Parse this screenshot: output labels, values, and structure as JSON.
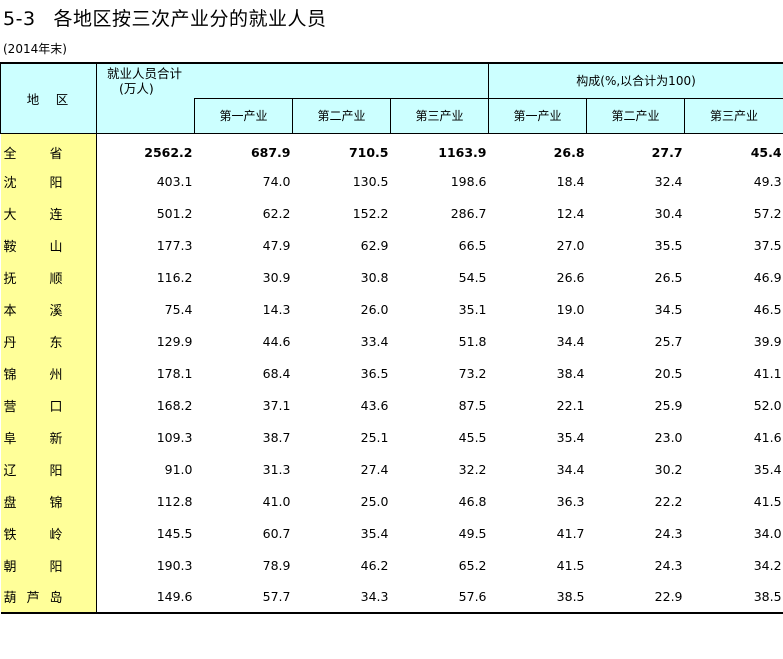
{
  "title": {
    "num": "5-3",
    "text": "各地区按三次产业分的就业人员"
  },
  "subtitle": "(2014年末)",
  "header": {
    "region": "地　区",
    "total": "就业人员合计",
    "total_unit": "(万人)",
    "composition": "构成(%,以合计为100)",
    "sub": [
      "第一产业",
      "第二产业",
      "第三产业",
      "第一产业",
      "第二产业",
      "第三产业"
    ]
  },
  "rows": [
    {
      "r1": "全",
      "r2": "省",
      "r3": "",
      "total": "2562.2",
      "p1": "687.9",
      "p2": "710.5",
      "p3": "1163.9",
      "c1": "26.8",
      "c2": "27.7",
      "c3": "45.4"
    },
    {
      "r1": "沈",
      "r2": "阳",
      "r3": "",
      "total": "403.1",
      "p1": "74.0",
      "p2": "130.5",
      "p3": "198.6",
      "c1": "18.4",
      "c2": "32.4",
      "c3": "49.3"
    },
    {
      "r1": "大",
      "r2": "连",
      "r3": "",
      "total": "501.2",
      "p1": "62.2",
      "p2": "152.2",
      "p3": "286.7",
      "c1": "12.4",
      "c2": "30.4",
      "c3": "57.2"
    },
    {
      "r1": "鞍",
      "r2": "山",
      "r3": "",
      "total": "177.3",
      "p1": "47.9",
      "p2": "62.9",
      "p3": "66.5",
      "c1": "27.0",
      "c2": "35.5",
      "c3": "37.5"
    },
    {
      "r1": "抚",
      "r2": "顺",
      "r3": "",
      "total": "116.2",
      "p1": "30.9",
      "p2": "30.8",
      "p3": "54.5",
      "c1": "26.6",
      "c2": "26.5",
      "c3": "46.9"
    },
    {
      "r1": "本",
      "r2": "溪",
      "r3": "",
      "total": "75.4",
      "p1": "14.3",
      "p2": "26.0",
      "p3": "35.1",
      "c1": "19.0",
      "c2": "34.5",
      "c3": "46.5"
    },
    {
      "r1": "丹",
      "r2": "东",
      "r3": "",
      "total": "129.9",
      "p1": "44.6",
      "p2": "33.4",
      "p3": "51.8",
      "c1": "34.4",
      "c2": "25.7",
      "c3": "39.9"
    },
    {
      "r1": "锦",
      "r2": "州",
      "r3": "",
      "total": "178.1",
      "p1": "68.4",
      "p2": "36.5",
      "p3": "73.2",
      "c1": "38.4",
      "c2": "20.5",
      "c3": "41.1"
    },
    {
      "r1": "营",
      "r2": "口",
      "r3": "",
      "total": "168.2",
      "p1": "37.1",
      "p2": "43.6",
      "p3": "87.5",
      "c1": "22.1",
      "c2": "25.9",
      "c3": "52.0"
    },
    {
      "r1": "阜",
      "r2": "新",
      "r3": "",
      "total": "109.3",
      "p1": "38.7",
      "p2": "25.1",
      "p3": "45.5",
      "c1": "35.4",
      "c2": "23.0",
      "c3": "41.6"
    },
    {
      "r1": "辽",
      "r2": "阳",
      "r3": "",
      "total": "91.0",
      "p1": "31.3",
      "p2": "27.4",
      "p3": "32.2",
      "c1": "34.4",
      "c2": "30.2",
      "c3": "35.4"
    },
    {
      "r1": "盘",
      "r2": "锦",
      "r3": "",
      "total": "112.8",
      "p1": "41.0",
      "p2": "25.0",
      "p3": "46.8",
      "c1": "36.3",
      "c2": "22.2",
      "c3": "41.5"
    },
    {
      "r1": "铁",
      "r2": "岭",
      "r3": "",
      "total": "145.5",
      "p1": "60.7",
      "p2": "35.4",
      "p3": "49.5",
      "c1": "41.7",
      "c2": "24.3",
      "c3": "34.0"
    },
    {
      "r1": "朝",
      "r2": "阳",
      "r3": "",
      "total": "190.3",
      "p1": "78.9",
      "p2": "46.2",
      "p3": "65.2",
      "c1": "41.5",
      "c2": "24.3",
      "c3": "34.2"
    },
    {
      "r1": "葫",
      "r2": "芦",
      "r3": "岛",
      "total": "149.6",
      "p1": "57.7",
      "p2": "34.3",
      "p3": "57.6",
      "c1": "38.5",
      "c2": "22.9",
      "c3": "38.5"
    }
  ]
}
